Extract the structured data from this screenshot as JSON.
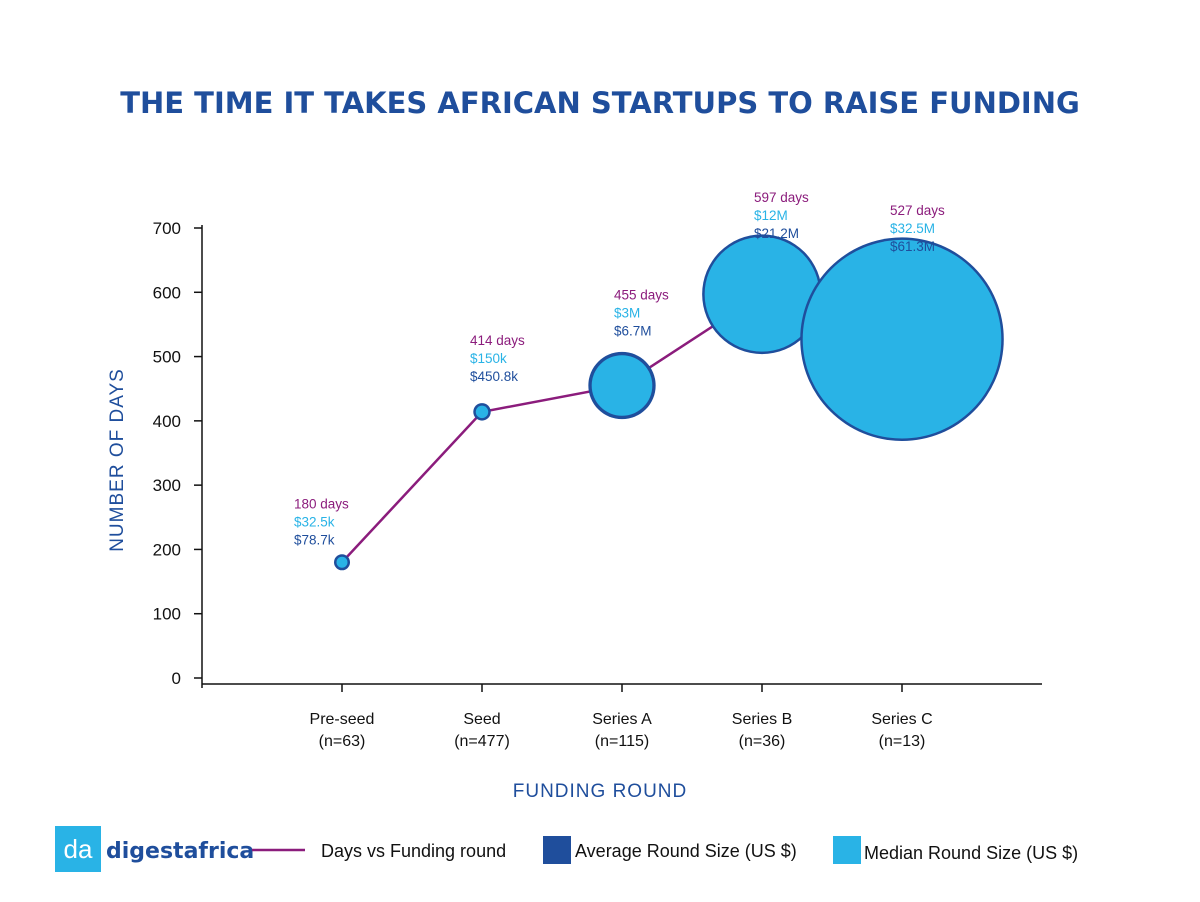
{
  "colors": {
    "line": "#8b1c7c",
    "average": "#1f4e9c",
    "median": "#29b3e6",
    "title": "#1f4e9c"
  },
  "logo": {
    "badge": "da",
    "wordmark": "digestafrica"
  },
  "legend": {
    "line_label": "Days vs Funding round",
    "average_label": "Average Round Size (US $)",
    "median_label": "Median Round Size (US $)"
  },
  "chart_data": {
    "type": "line",
    "title": "THE TIME IT TAKES AFRICAN STARTUPS TO RAISE FUNDING",
    "xlabel": "FUNDING ROUND",
    "ylabel": "NUMBER OF DAYS",
    "ylim": [
      0,
      700
    ],
    "yticks": [
      0,
      100,
      200,
      300,
      400,
      500,
      600,
      700
    ],
    "categories": [
      "Pre-seed",
      "Seed",
      "Series A",
      "Series B",
      "Series C"
    ],
    "category_counts": [
      "(n=63)",
      "(n=477)",
      "(n=115)",
      "(n=36)",
      "(n=13)"
    ],
    "series": [
      {
        "name": "Days vs Funding round",
        "values": [
          180,
          414,
          455,
          597,
          527
        ]
      },
      {
        "name": "Average Round Size (US $)",
        "unit_millions": [
          0.0787,
          0.4508,
          6.7,
          21.2,
          61.3
        ]
      },
      {
        "name": "Median Round Size (US $)",
        "unit_millions": [
          0.0325,
          0.15,
          3,
          12,
          32.5
        ]
      }
    ],
    "annotations": [
      {
        "days": "180 days",
        "median": "$32.5k",
        "average": "$78.7k"
      },
      {
        "days": "414 days",
        "median": "$150k",
        "average": "$450.8k"
      },
      {
        "days": "455 days",
        "median": "$3M",
        "average": "$6.7M"
      },
      {
        "days": "597 days",
        "median": "$12M",
        "average": "$21.2M"
      },
      {
        "days": "527 days",
        "median": "$32.5M",
        "average": "$61.3M"
      }
    ],
    "grid": false
  }
}
